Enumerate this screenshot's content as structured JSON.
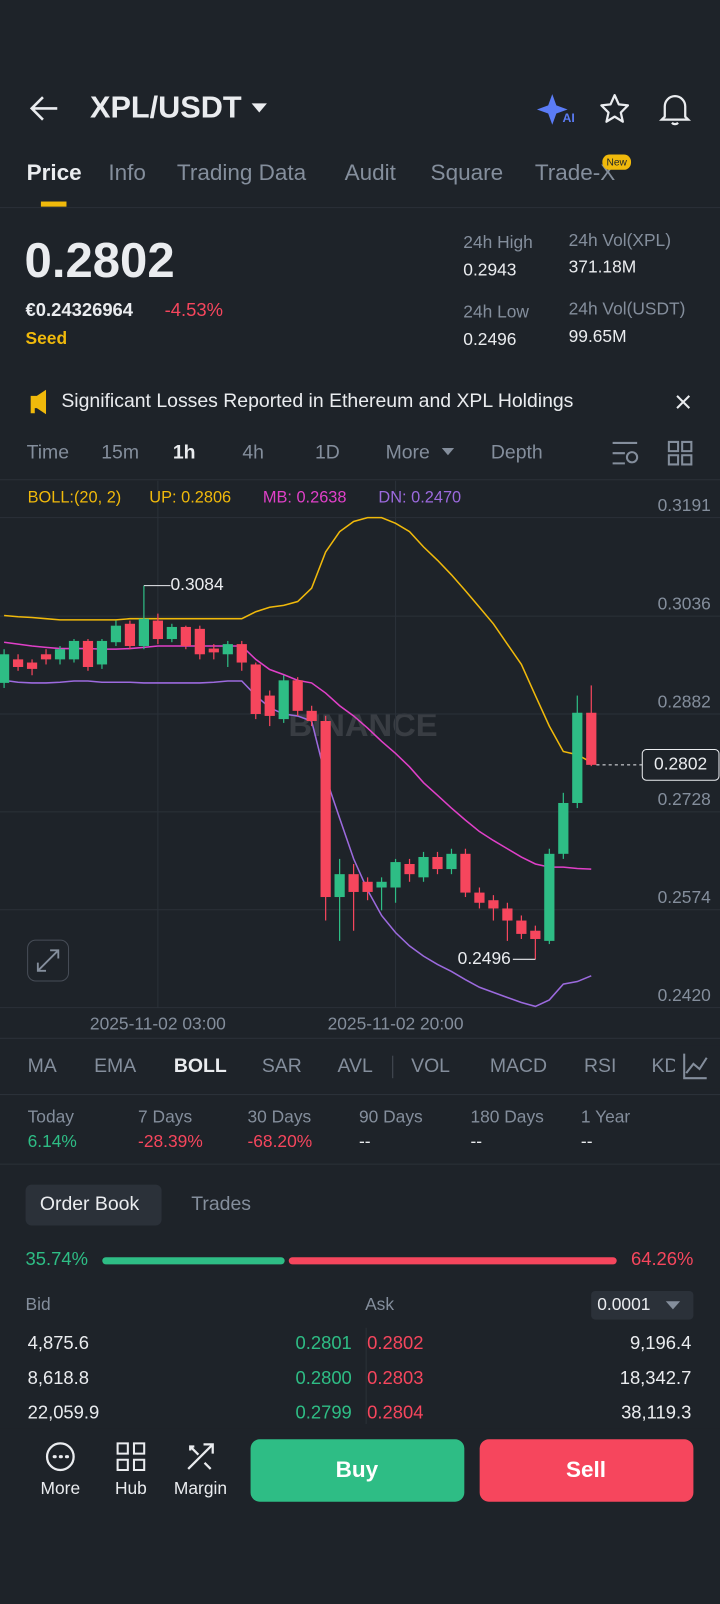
{
  "header": {
    "pair": "XPL/USDT",
    "ai_badge": "AI"
  },
  "tabs": [
    "Price",
    "Info",
    "Trading Data",
    "Audit",
    "Square",
    "Trade-X"
  ],
  "new_badge": "New",
  "price": {
    "last": "0.2802",
    "fiat": "€0.24326964",
    "change": "-4.53%",
    "tag": "Seed"
  },
  "stats": [
    {
      "label": "24h High",
      "value": "0.2943"
    },
    {
      "label": "24h Vol(XPL)",
      "value": "371.18M"
    },
    {
      "label": "24h Low",
      "value": "0.2496"
    },
    {
      "label": "24h Vol(USDT)",
      "value": "99.65M"
    }
  ],
  "news": "Significant Losses Reported in Ethereum and XPL Holdings",
  "intervals": [
    "Time",
    "15m",
    "1h",
    "4h",
    "1D",
    "More",
    "Depth"
  ],
  "chart_data": {
    "type": "candlestick",
    "indicator": "BOLL:(20, 2)",
    "watermark": "BINANCE",
    "categories": [
      null,
      null,
      null,
      null,
      null,
      null,
      null,
      null,
      null,
      null,
      null,
      "2025-11-02 03:00",
      null,
      null,
      null,
      null,
      null,
      null,
      null,
      null,
      null,
      null,
      null,
      null,
      null,
      null,
      null,
      null,
      "2025-11-02 20:00",
      null,
      null,
      null,
      null,
      null,
      null,
      null,
      null,
      null,
      null,
      null,
      null,
      null,
      null
    ],
    "open": [
      0.2931,
      0.2968,
      0.2963,
      0.2976,
      0.2968,
      0.2968,
      0.2997,
      0.296,
      0.2995,
      0.3024,
      0.2989,
      0.3029,
      0.3,
      0.3019,
      0.3016,
      0.2985,
      0.2976,
      0.2992,
      0.296,
      0.2911,
      0.2874,
      0.2935,
      0.2887,
      0.2871,
      0.2594,
      0.263,
      0.2618,
      0.2609,
      0.2609,
      0.2646,
      0.2625,
      0.2657,
      0.2638,
      0.2662,
      0.2601,
      0.2589,
      0.2576,
      0.2557,
      0.2541,
      0.2525,
      0.2662,
      0.2742,
      0.2884
    ],
    "high": [
      0.2984,
      0.2976,
      0.2968,
      0.2984,
      0.2989,
      0.3,
      0.3,
      0.3,
      0.3029,
      0.3029,
      0.3084,
      0.304,
      0.3024,
      0.3021,
      0.3021,
      0.2992,
      0.2997,
      0.2997,
      0.2963,
      0.2919,
      0.2943,
      0.294,
      0.2895,
      0.2879,
      0.2654,
      0.2646,
      0.2625,
      0.2625,
      0.2654,
      0.2654,
      0.2665,
      0.2665,
      0.267,
      0.267,
      0.2609,
      0.2597,
      0.2585,
      0.2565,
      0.2549,
      0.267,
      0.2758,
      0.2911,
      0.2927
    ],
    "low": [
      0.2923,
      0.295,
      0.2943,
      0.296,
      0.296,
      0.2963,
      0.295,
      0.2953,
      0.2989,
      0.2984,
      0.2984,
      0.2992,
      0.2995,
      0.2984,
      0.2968,
      0.2968,
      0.2956,
      0.295,
      0.2874,
      0.2863,
      0.2868,
      0.2879,
      0.2863,
      0.2557,
      0.2525,
      0.2541,
      0.2589,
      0.2573,
      0.2585,
      0.2618,
      0.2618,
      0.263,
      0.263,
      0.2594,
      0.2576,
      0.2557,
      0.2525,
      0.2528,
      0.2496,
      0.252,
      0.2654,
      0.2734,
      0.28
    ],
    "close": [
      0.2976,
      0.2956,
      0.2953,
      0.2968,
      0.2984,
      0.2997,
      0.2956,
      0.2997,
      0.3021,
      0.2989,
      0.3032,
      0.3,
      0.3019,
      0.2989,
      0.2976,
      0.2979,
      0.2992,
      0.2963,
      0.2882,
      0.2879,
      0.2935,
      0.2887,
      0.2871,
      0.2594,
      0.263,
      0.2602,
      0.2602,
      0.2618,
      0.2649,
      0.263,
      0.2657,
      0.2638,
      0.2662,
      0.2601,
      0.2585,
      0.2576,
      0.2557,
      0.2536,
      0.2528,
      0.2662,
      0.2742,
      0.2884,
      0.2802
    ],
    "up_color": "#2ebd85",
    "down_color": "#f6465d",
    "indicator_color": "#f0b90b",
    "series": [
      {
        "name": "UP: 0.2806",
        "color": "#f0b90b",
        "values": [
          0.3037,
          0.3035,
          0.3034,
          0.3032,
          0.303,
          0.303,
          0.303,
          0.303,
          0.303,
          0.3032,
          0.3032,
          0.3032,
          0.3032,
          0.3032,
          0.3032,
          0.3032,
          0.3032,
          0.3032,
          0.3043,
          0.305,
          0.3053,
          0.3059,
          0.308,
          0.3137,
          0.3169,
          0.3185,
          0.3191,
          0.3191,
          0.3182,
          0.3169,
          0.3145,
          0.3124,
          0.3101,
          0.3076,
          0.305,
          0.3024,
          0.2992,
          0.296,
          0.2911,
          0.2863,
          0.2823,
          0.2818,
          0.2806
        ]
      },
      {
        "name": "MB: 0.2638",
        "color": "#e040c8",
        "values": [
          0.2995,
          0.2992,
          0.2989,
          0.2987,
          0.2985,
          0.2985,
          0.2985,
          0.2984,
          0.2984,
          0.2985,
          0.2987,
          0.2989,
          0.2989,
          0.2989,
          0.2989,
          0.2989,
          0.2989,
          0.2989,
          0.2968,
          0.2952,
          0.2944,
          0.2935,
          0.2931,
          0.2915,
          0.2895,
          0.2879,
          0.286,
          0.2839,
          0.282,
          0.2799,
          0.2774,
          0.2754,
          0.2734,
          0.2715,
          0.2697,
          0.2683,
          0.267,
          0.2657,
          0.2646,
          0.2641,
          0.2641,
          0.2639,
          0.2638
        ]
      },
      {
        "name": "DN: 0.2470",
        "color": "#9c6ade",
        "values": [
          0.2935,
          0.2932,
          0.2931,
          0.2931,
          0.2932,
          0.2934,
          0.2934,
          0.2932,
          0.2932,
          0.2932,
          0.2931,
          0.2931,
          0.2931,
          0.2931,
          0.2931,
          0.2932,
          0.2934,
          0.2934,
          0.2911,
          0.2892,
          0.2882,
          0.2879,
          0.2871,
          0.2783,
          0.2718,
          0.2654,
          0.2605,
          0.2565,
          0.2538,
          0.2517,
          0.2501,
          0.2488,
          0.2477,
          0.2464,
          0.2452,
          0.2444,
          0.2436,
          0.2428,
          0.2422,
          0.2432,
          0.2457,
          0.2461,
          0.247
        ]
      }
    ],
    "ylim": [
      0.242,
      0.3249
    ],
    "yticks": [
      0.3191,
      0.3036,
      0.2882,
      0.2728,
      0.2574,
      {
        "value": 0.242,
        "label": "0.2420"
      }
    ],
    "grid": true,
    "max_label": 0.3084,
    "min_label": 0.2496,
    "last_label": 0.2802
  },
  "indicators": [
    "MA",
    "EMA",
    "BOLL",
    "SAR",
    "AVL",
    "VOL",
    "MACD",
    "RSI",
    "KD"
  ],
  "performance": [
    {
      "label": "Today",
      "value": "6.14%",
      "color": "#2ebd85"
    },
    {
      "label": "7 Days",
      "value": "-28.39%",
      "color": "#f6465d"
    },
    {
      "label": "30 Days",
      "value": "-68.20%",
      "color": "#f6465d"
    },
    {
      "label": "90 Days",
      "value": "--",
      "color": "#eaecef"
    },
    {
      "label": "180 Days",
      "value": "--",
      "color": "#eaecef"
    },
    {
      "label": "1 Year",
      "value": "--",
      "color": "#eaecef"
    }
  ],
  "order_book": {
    "tabs": [
      "Order Book",
      "Trades"
    ],
    "bid_pct": {
      "value": 35.74,
      "label": "35.74%"
    },
    "ask_pct": {
      "value": 64.26,
      "label": "64.26%"
    },
    "bid_label": "Bid",
    "ask_label": "Ask",
    "precision": "0.0001",
    "rows": [
      [
        "4,875.6",
        "0.2801",
        "0.2802",
        "9,196.4"
      ],
      [
        "8,618.8",
        "0.2800",
        "0.2803",
        "18,342.7"
      ],
      [
        "22,059.9",
        "0.2799",
        "0.2804",
        "38,119.3"
      ]
    ]
  },
  "bottom": {
    "more": "More",
    "hub": "Hub",
    "margin": "Margin",
    "buy": "Buy",
    "sell": "Sell"
  }
}
